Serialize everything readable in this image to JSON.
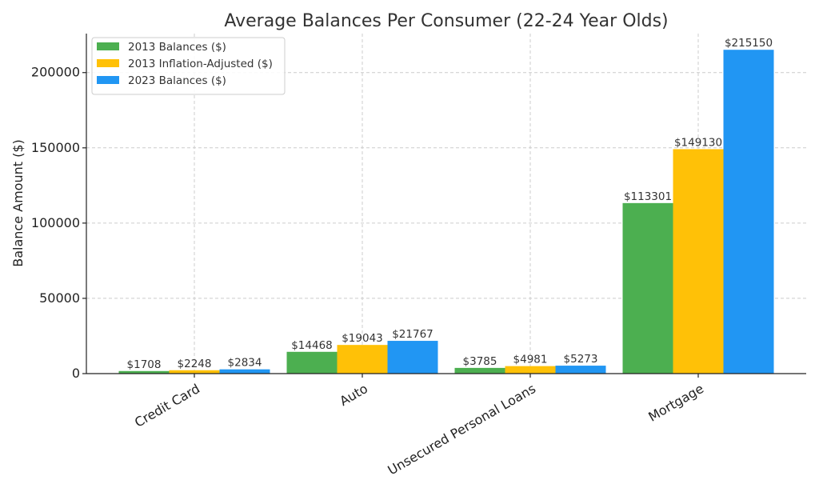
{
  "chart_data": {
    "type": "bar",
    "title": "Average Balances Per Consumer (22-24 Year Olds)",
    "xlabel": "",
    "ylabel": "Balance Amount ($)",
    "categories": [
      "Credit Card",
      "Auto",
      "Unsecured Personal Loans",
      "Mortgage"
    ],
    "series": [
      {
        "name": "2013 Balances ($)",
        "color": "#4caf50",
        "values": [
          1708,
          14468,
          3785,
          113301
        ],
        "labels": [
          "$1708",
          "$14468",
          "$3785",
          "$113301"
        ]
      },
      {
        "name": "2013 Inflation-Adjusted ($)",
        "color": "#ffc107",
        "values": [
          2248,
          19043,
          4981,
          149130
        ],
        "labels": [
          "$2248",
          "$19043",
          "$4981",
          "$149130"
        ]
      },
      {
        "name": "2023 Balances ($)",
        "color": "#2196f3",
        "values": [
          2834,
          21767,
          5273,
          215150
        ],
        "labels": [
          "$2834",
          "$21767",
          "$5273",
          "$215150"
        ]
      }
    ],
    "yticks": [
      0,
      50000,
      100000,
      150000,
      200000
    ],
    "ytick_labels": [
      "0",
      "50000",
      "100000",
      "150000",
      "200000"
    ],
    "ylim": [
      0,
      225907
    ],
    "grid": true,
    "legend_position": "top-left"
  }
}
